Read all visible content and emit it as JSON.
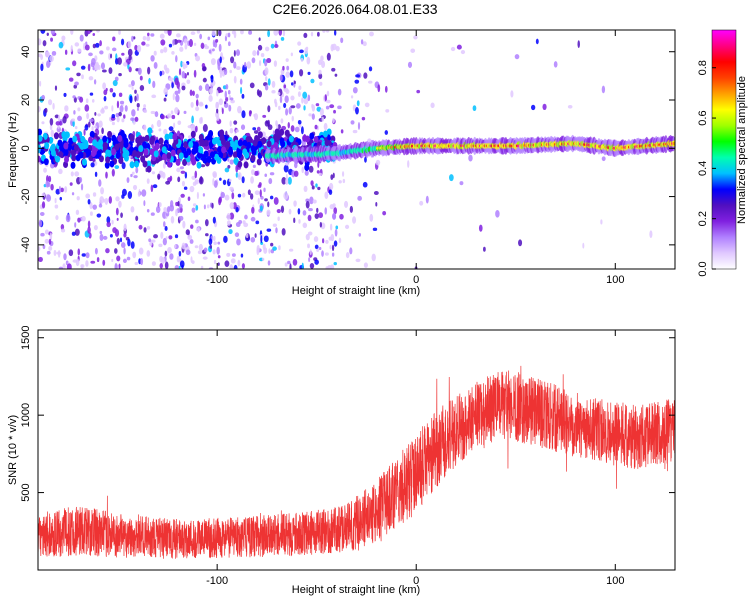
{
  "title": "C2E6.2026.064.08.01.E33",
  "chart_data": [
    {
      "type": "heatmap",
      "name": "spectrogram",
      "xlabel": "Height of straight line (km)",
      "ylabel": "Frequency (Hz)",
      "xlim": [
        -190,
        130
      ],
      "ylim": [
        -50,
        49
      ],
      "xticks": [
        -100,
        0,
        100
      ],
      "xtick_labels": [
        "-100",
        "0",
        "100"
      ],
      "yticks": [
        -40,
        -20,
        0,
        20,
        40
      ],
      "ytick_labels": [
        "-40",
        "-20",
        "0",
        "20",
        "40"
      ],
      "colorbar": {
        "label": "Normalized spectral amplitude",
        "range": [
          0,
          0.95
        ],
        "ticks": [
          0.0,
          0.2,
          0.4,
          0.6,
          0.8
        ],
        "tick_labels": [
          "0.0",
          "0.2",
          "0.4",
          "0.6",
          "0.8"
        ],
        "colors": [
          "#ffffff",
          "#e0c8ff",
          "#b080ff",
          "#8020e0",
          "#5010c0",
          "#0000ff",
          "#00c0ff",
          "#00ffb0",
          "#00ff00",
          "#a0ff00",
          "#ffff00",
          "#ffa000",
          "#ff4000",
          "#ff0000",
          "#ff0080",
          "#ff00ff"
        ]
      },
      "ridge": {
        "description_points_x": [
          -70,
          -40,
          -20,
          0,
          20,
          50,
          80,
          100,
          130
        ],
        "description_points_y": [
          -3,
          -2,
          0,
          1,
          1,
          1,
          2,
          0,
          2
        ]
      }
    },
    {
      "type": "line",
      "name": "snr",
      "xlabel": "Height of straight line (km)",
      "ylabel": "SNR (10 * v/v)",
      "xlim": [
        -190,
        130
      ],
      "ylim": [
        0,
        1550
      ],
      "xticks": [
        -100,
        0,
        100
      ],
      "xtick_labels": [
        "-100",
        "0",
        "100"
      ],
      "yticks": [
        500,
        1000,
        1500
      ],
      "ytick_labels": [
        "500",
        "1000",
        "1500"
      ],
      "color": "#ee3333",
      "envelope_x": [
        -190,
        -170,
        -150,
        -120,
        -90,
        -60,
        -40,
        -30,
        -20,
        -10,
        0,
        10,
        20,
        30,
        40,
        50,
        60,
        70,
        80,
        90,
        100,
        110,
        120,
        130
      ],
      "envelope_mean": [
        210,
        260,
        220,
        200,
        210,
        230,
        260,
        300,
        380,
        500,
        620,
        780,
        900,
        1000,
        1060,
        1060,
        1020,
        980,
        940,
        900,
        880,
        860,
        880,
        900
      ],
      "envelope_spread": [
        130,
        170,
        140,
        130,
        130,
        140,
        150,
        180,
        200,
        230,
        260,
        250,
        230,
        220,
        230,
        230,
        220,
        220,
        210,
        210,
        210,
        210,
        210,
        210
      ]
    }
  ]
}
